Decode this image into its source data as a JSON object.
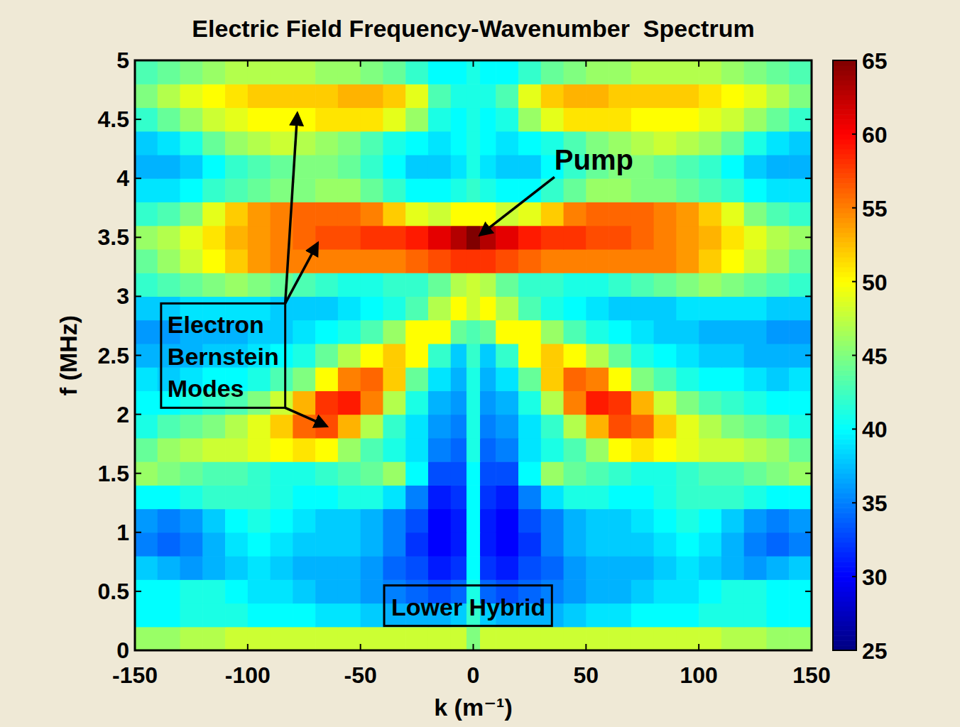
{
  "chart_data": {
    "type": "heatmap",
    "title": "Electric Field Frequency-Wavenumber  Spectrum",
    "x_label": "k (m⁻¹)",
    "y_label": "f (MHz)",
    "xlim": [
      -150,
      150
    ],
    "ylim": [
      0,
      5
    ],
    "xticks": [
      -150,
      -100,
      -50,
      0,
      50,
      100,
      150
    ],
    "yticks": [
      0,
      0.5,
      1,
      1.5,
      2,
      2.5,
      3,
      3.5,
      4,
      4.5,
      5
    ],
    "x_bins": [
      -150,
      -140,
      -130,
      -120,
      -110,
      -100,
      -90,
      -80,
      -70,
      -60,
      -50,
      -40,
      -30,
      -20,
      -10,
      -3,
      3,
      10,
      20,
      30,
      40,
      50,
      60,
      70,
      80,
      90,
      100,
      110,
      120,
      130,
      140,
      150
    ],
    "y_bins": [
      0,
      0.2,
      0.4,
      0.6,
      0.8,
      1,
      1.2,
      1.4,
      1.6,
      1.8,
      2,
      2.2,
      2.4,
      2.6,
      2.8,
      3,
      3.2,
      3.4,
      3.6,
      3.8,
      4,
      4.2,
      4.4,
      4.6,
      4.8,
      5
    ],
    "values": [
      [
        46,
        46,
        47,
        47,
        48,
        48,
        48,
        48,
        48,
        48,
        48,
        48,
        48,
        48,
        48,
        45,
        48,
        48,
        48,
        48,
        48,
        48,
        48,
        48,
        48,
        48,
        48,
        47,
        47,
        46,
        46
      ],
      [
        40,
        40,
        41,
        41,
        41,
        40,
        40,
        40,
        39,
        39,
        38,
        37,
        37,
        37,
        38,
        42,
        38,
        37,
        37,
        37,
        38,
        39,
        39,
        40,
        40,
        40,
        41,
        41,
        41,
        40,
        40
      ],
      [
        40,
        40,
        41,
        41,
        40,
        39,
        39,
        38,
        37,
        37,
        36,
        35,
        34,
        33,
        34,
        41,
        34,
        33,
        34,
        35,
        36,
        37,
        37,
        38,
        39,
        39,
        40,
        41,
        41,
        40,
        40
      ],
      [
        38,
        37,
        36,
        37,
        38,
        39,
        38,
        37,
        37,
        37,
        36,
        34,
        33,
        31,
        32,
        40,
        32,
        31,
        33,
        34,
        36,
        37,
        37,
        37,
        38,
        39,
        38,
        37,
        36,
        37,
        38
      ],
      [
        35,
        34,
        35,
        37,
        39,
        40,
        39,
        38,
        38,
        38,
        37,
        35,
        32,
        30,
        31,
        40,
        31,
        30,
        32,
        35,
        37,
        38,
        38,
        38,
        39,
        40,
        39,
        37,
        35,
        34,
        35
      ],
      [
        36,
        35,
        36,
        38,
        40,
        41,
        40,
        39,
        38,
        38,
        37,
        35,
        33,
        30,
        31,
        40,
        31,
        30,
        33,
        35,
        37,
        38,
        38,
        39,
        40,
        41,
        40,
        38,
        36,
        35,
        36
      ],
      [
        40,
        40,
        41,
        42,
        42,
        42,
        41,
        40,
        40,
        41,
        41,
        39,
        35,
        31,
        32,
        40,
        32,
        31,
        35,
        39,
        41,
        41,
        40,
        40,
        41,
        42,
        42,
        42,
        41,
        40,
        40
      ],
      [
        46,
        45,
        44,
        43,
        43,
        42,
        41,
        41,
        42,
        43,
        44,
        46,
        40,
        33,
        33,
        40,
        33,
        33,
        40,
        46,
        44,
        43,
        42,
        41,
        41,
        42,
        43,
        43,
        44,
        45,
        46
      ],
      [
        44,
        46,
        47,
        48,
        48,
        49,
        50,
        51,
        50,
        46,
        43,
        41,
        39,
        35,
        34,
        41,
        34,
        35,
        39,
        41,
        43,
        46,
        50,
        51,
        50,
        49,
        48,
        48,
        47,
        46,
        44
      ],
      [
        41,
        43,
        44,
        45,
        47,
        49,
        52,
        56,
        57,
        53,
        47,
        42,
        39,
        36,
        35,
        41,
        35,
        36,
        39,
        42,
        47,
        53,
        57,
        56,
        52,
        49,
        47,
        45,
        44,
        43,
        41
      ],
      [
        40,
        40,
        41,
        42,
        43,
        45,
        48,
        53,
        58,
        59,
        55,
        47,
        41,
        37,
        36,
        41,
        36,
        37,
        41,
        47,
        55,
        59,
        58,
        53,
        48,
        45,
        43,
        42,
        41,
        40,
        40
      ],
      [
        39,
        38,
        39,
        40,
        40,
        41,
        43,
        45,
        50,
        55,
        56,
        52,
        44,
        39,
        37,
        41,
        37,
        39,
        44,
        52,
        56,
        55,
        50,
        45,
        43,
        41,
        40,
        40,
        39,
        38,
        39
      ],
      [
        37,
        37,
        37,
        38,
        38,
        39,
        40,
        41,
        44,
        47,
        50,
        52,
        50,
        42,
        38,
        42,
        38,
        42,
        50,
        52,
        50,
        47,
        44,
        41,
        40,
        39,
        38,
        38,
        37,
        37,
        37
      ],
      [
        36,
        36,
        37,
        37,
        37,
        38,
        38,
        39,
        40,
        41,
        43,
        46,
        50,
        50,
        44,
        43,
        44,
        50,
        50,
        46,
        43,
        41,
        40,
        39,
        38,
        38,
        37,
        37,
        37,
        36,
        36
      ],
      [
        38,
        38,
        39,
        39,
        39,
        39,
        38,
        38,
        38,
        39,
        40,
        41,
        43,
        47,
        50,
        48,
        50,
        47,
        43,
        41,
        40,
        39,
        38,
        38,
        38,
        39,
        39,
        39,
        39,
        38,
        38
      ],
      [
        42,
        43,
        44,
        45,
        46,
        45,
        44,
        43,
        42,
        41,
        41,
        42,
        42,
        44,
        47,
        48,
        47,
        44,
        42,
        42,
        41,
        41,
        42,
        43,
        44,
        45,
        46,
        45,
        44,
        43,
        42
      ],
      [
        44,
        46,
        48,
        50,
        52,
        54,
        55,
        55,
        55,
        55,
        55,
        55,
        56,
        57,
        58,
        58,
        58,
        57,
        56,
        55,
        55,
        55,
        55,
        55,
        55,
        54,
        52,
        50,
        48,
        46,
        44
      ],
      [
        46,
        47,
        49,
        51,
        53,
        54,
        55,
        56,
        57,
        57,
        58,
        58,
        59,
        61,
        63,
        65,
        63,
        61,
        59,
        58,
        58,
        57,
        57,
        56,
        55,
        54,
        53,
        51,
        49,
        47,
        46
      ],
      [
        42,
        43,
        45,
        49,
        52,
        54,
        55,
        56,
        56,
        56,
        55,
        52,
        49,
        48,
        50,
        50,
        50,
        48,
        49,
        52,
        55,
        56,
        56,
        56,
        55,
        54,
        52,
        49,
        45,
        43,
        42
      ],
      [
        39,
        39,
        40,
        42,
        43,
        44,
        45,
        45,
        46,
        46,
        44,
        42,
        40,
        40,
        41,
        42,
        41,
        40,
        40,
        42,
        44,
        46,
        46,
        45,
        45,
        44,
        43,
        42,
        40,
        39,
        39
      ],
      [
        37,
        37,
        38,
        40,
        42,
        43,
        44,
        45,
        45,
        44,
        42,
        40,
        38,
        38,
        39,
        41,
        39,
        38,
        38,
        40,
        42,
        44,
        45,
        45,
        44,
        43,
        42,
        40,
        38,
        37,
        37
      ],
      [
        38,
        39,
        41,
        44,
        46,
        47,
        48,
        47,
        46,
        45,
        43,
        41,
        40,
        39,
        40,
        41,
        40,
        39,
        40,
        41,
        43,
        45,
        46,
        47,
        48,
        47,
        46,
        44,
        41,
        39,
        38
      ],
      [
        42,
        44,
        46,
        48,
        49,
        50,
        50,
        50,
        51,
        51,
        51,
        49,
        46,
        41,
        40,
        41,
        40,
        41,
        46,
        49,
        51,
        51,
        51,
        50,
        50,
        50,
        49,
        48,
        46,
        44,
        42
      ],
      [
        45,
        47,
        49,
        50,
        51,
        52,
        52,
        52,
        52,
        53,
        53,
        52,
        49,
        43,
        41,
        41,
        41,
        43,
        49,
        52,
        53,
        53,
        52,
        52,
        52,
        52,
        51,
        50,
        49,
        47,
        45
      ],
      [
        43,
        44,
        45,
        46,
        47,
        47,
        47,
        47,
        46,
        46,
        45,
        44,
        42,
        40,
        40,
        41,
        40,
        40,
        42,
        44,
        45,
        46,
        46,
        47,
        47,
        47,
        47,
        46,
        45,
        44,
        43
      ]
    ],
    "colorbar": {
      "range": [
        25,
        65
      ],
      "ticks": [
        25,
        30,
        35,
        40,
        45,
        50,
        55,
        60,
        65
      ]
    },
    "annotations": [
      {
        "text": "Pump",
        "x": 36,
        "y": 4.3,
        "arrows": [
          [
            3,
            3.52
          ]
        ]
      },
      {
        "lines": [
          "Electron",
          "Bernstein",
          "Modes"
        ],
        "x": -138.4,
        "y": 2.94,
        "arrows": [
          [
            -78,
            4.55
          ],
          [
            -69,
            3.45
          ],
          [
            -65,
            1.9
          ]
        ]
      },
      {
        "text": "Lower Hybrid",
        "x": -39.5,
        "y": 0.55
      }
    ]
  }
}
